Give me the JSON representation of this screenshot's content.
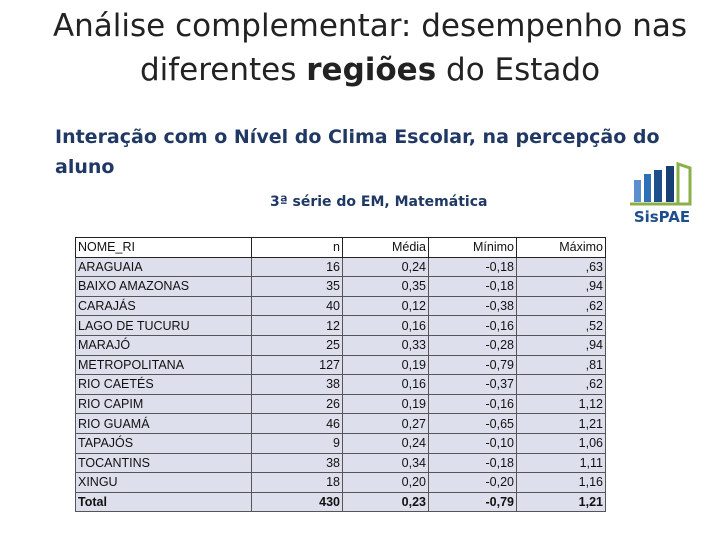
{
  "title": [
    "Análise complementar: desempenho nas diferentes ",
    "regiões",
    " do Estado"
  ],
  "subtitle": "Interação com o Nível do Clima Escolar, na percepção do aluno",
  "caption": "3ª série do EM, Matemática",
  "logo": "SisPAE",
  "table": {
    "header": [
      "NOME_RI",
      "n",
      "Média",
      "Mínimo",
      "Máximo"
    ],
    "rows": [
      [
        "ARAGUAIA",
        "16",
        "0,24",
        "-0,18",
        ",63"
      ],
      [
        "BAIXO AMAZONAS",
        "35",
        "0,35",
        "-0,18",
        ",94"
      ],
      [
        "CARAJÁS",
        "40",
        "0,12",
        "-0,38",
        ",62"
      ],
      [
        "LAGO DE TUCURU",
        "12",
        "0,16",
        "-0,16",
        ",52"
      ],
      [
        "MARAJÓ",
        "25",
        "0,33",
        "-0,28",
        ",94"
      ],
      [
        "METROPOLITANA",
        "127",
        "0,19",
        "-0,79",
        ",81"
      ],
      [
        "RIO CAETÉS",
        "38",
        "0,16",
        "-0,37",
        ",62"
      ],
      [
        "RIO CAPIM",
        "26",
        "0,19",
        "-0,16",
        "1,12"
      ],
      [
        "RIO GUAMÁ",
        "46",
        "0,27",
        "-0,65",
        "1,21"
      ],
      [
        "TAPAJÓS",
        "9",
        "0,24",
        "-0,10",
        "1,06"
      ],
      [
        "TOCANTINS",
        "38",
        "0,34",
        "-0,18",
        "1,11"
      ],
      [
        "XINGU",
        "18",
        "0,20",
        "-0,20",
        "1,16"
      ]
    ],
    "total": [
      "Total",
      "430",
      "0,23",
      "-0,79",
      "1,21"
    ]
  }
}
